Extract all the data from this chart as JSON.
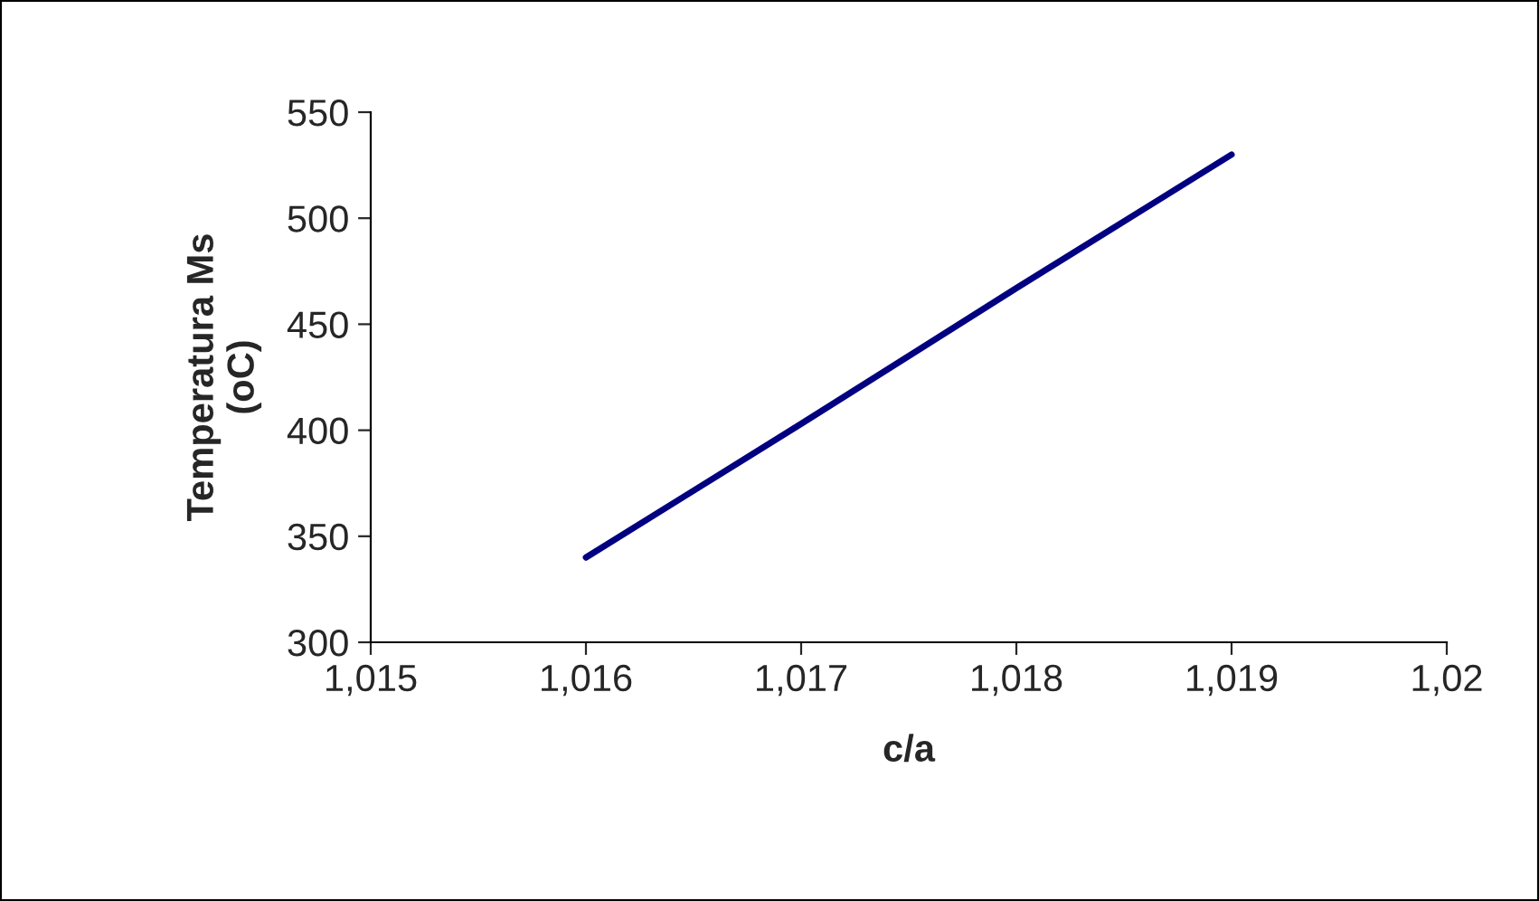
{
  "chart_data": {
    "type": "line",
    "xlabel": "c/a",
    "ylabel": "Temperatura Ms\n(oC)",
    "categories": [
      "1,015",
      "1,016",
      "1,017",
      "1,018",
      "1,019",
      "1,02"
    ],
    "series": [
      {
        "color": "#000080",
        "values": [
          null,
          340,
          403,
          467,
          530,
          null
        ]
      }
    ],
    "ylim": [
      300,
      550
    ],
    "yticks": [
      300,
      350,
      400,
      450,
      500,
      550
    ],
    "grid": false,
    "legend": false,
    "marker": "none",
    "line_style": "solid"
  }
}
